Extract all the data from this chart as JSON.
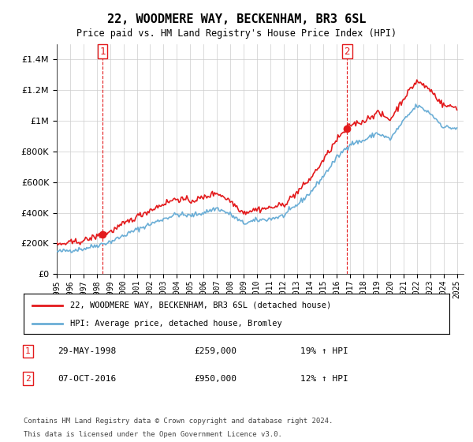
{
  "title": "22, WOODMERE WAY, BECKENHAM, BR3 6SL",
  "subtitle": "Price paid vs. HM Land Registry's House Price Index (HPI)",
  "legend_line1": "22, WOODMERE WAY, BECKENHAM, BR3 6SL (detached house)",
  "legend_line2": "HPI: Average price, detached house, Bromley",
  "annotation1_label": "1",
  "annotation1_date": "29-MAY-1998",
  "annotation1_price": "£259,000",
  "annotation1_hpi": "19% ↑ HPI",
  "annotation2_label": "2",
  "annotation2_date": "07-OCT-2016",
  "annotation2_price": "£950,000",
  "annotation2_hpi": "12% ↑ HPI",
  "footnote1": "Contains HM Land Registry data © Crown copyright and database right 2024.",
  "footnote2": "This data is licensed under the Open Government Licence v3.0.",
  "sale1_x": 1998.42,
  "sale1_y": 259000,
  "sale2_x": 2016.77,
  "sale2_y": 950000,
  "vline1_x": 1998.42,
  "vline2_x": 2016.77,
  "hpi_color": "#6baed6",
  "price_color": "#e31a1c",
  "vline_color": "#e31a1c",
  "background_color": "#ffffff",
  "grid_color": "#cccccc",
  "ylim": [
    0,
    1500000
  ],
  "xlim": [
    1995,
    2025.5
  ],
  "yticks": [
    0,
    200000,
    400000,
    600000,
    800000,
    1000000,
    1200000,
    1400000
  ],
  "hpi_points_t": [
    1995,
    1997,
    1999,
    2001,
    2003,
    2004,
    2005,
    2006,
    2007,
    2008,
    2009,
    2010,
    2011,
    2012,
    2013,
    2014,
    2015,
    2016,
    2017,
    2018,
    2019,
    2020,
    2021,
    2022,
    2023,
    2024,
    2025
  ],
  "hpi_points_v": [
    145000,
    165000,
    210000,
    290000,
    360000,
    390000,
    380000,
    400000,
    430000,
    390000,
    330000,
    350000,
    360000,
    380000,
    450000,
    530000,
    640000,
    760000,
    850000,
    870000,
    920000,
    880000,
    1000000,
    1100000,
    1050000,
    960000,
    950000
  ]
}
